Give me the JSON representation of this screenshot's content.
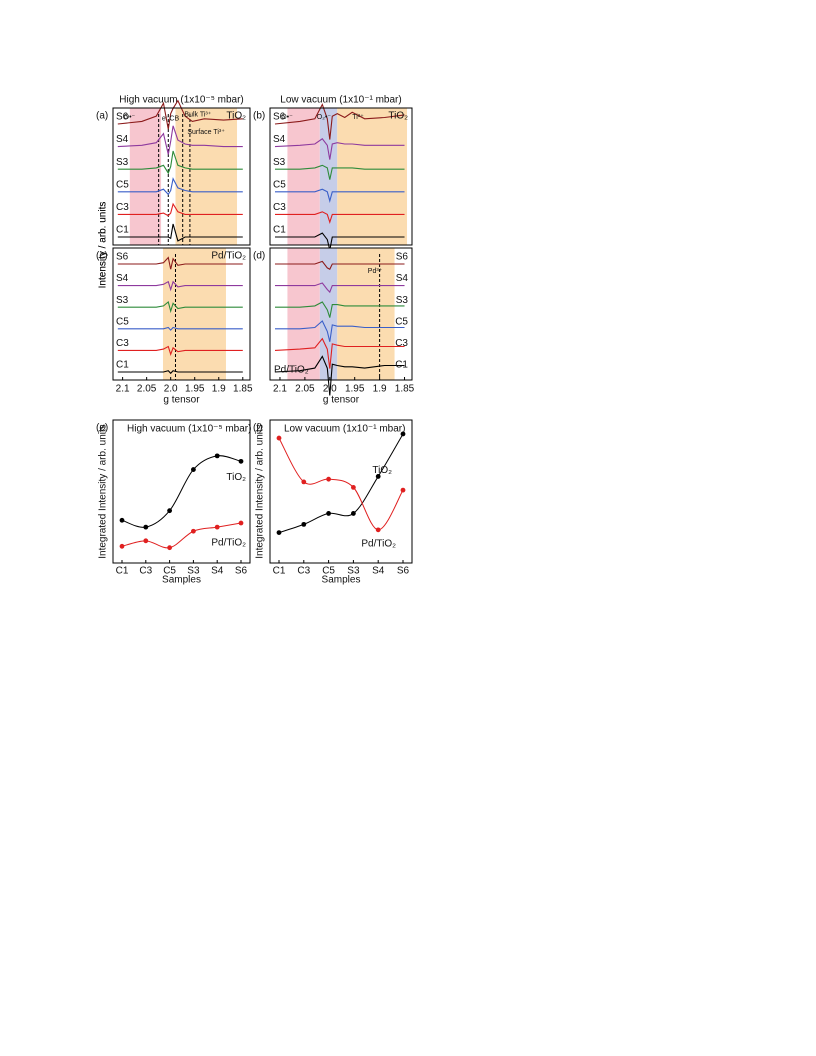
{
  "chart_data": [
    {
      "type": "spectra",
      "panel_label": "(a)",
      "title": "High vacuum (1x10⁻⁵ mbar)",
      "sample_label": "TiO₂",
      "ylabel": "Intensity / arb. units",
      "annotations": [
        "O•⁻",
        "e⁻CB",
        "Bulk Ti³⁺",
        "Surface Ti³⁺"
      ],
      "xlim": [
        2.12,
        1.835
      ],
      "x": [
        2.11,
        2.06,
        2.03,
        2.015,
        2.005,
        2.0,
        1.995,
        1.985,
        1.97,
        1.955,
        1.93,
        1.89,
        1.85
      ],
      "regions": [
        {
          "from": 2.085,
          "to": 2.02,
          "color": "#f7c6cf"
        },
        {
          "from": 1.99,
          "to": 1.862,
          "color": "#fbdcb0"
        }
      ],
      "reference_lines": [
        2.025,
        2.005,
        1.975,
        1.96
      ],
      "series": [
        {
          "name": "S6",
          "color": "#8b1a1a",
          "values": [
            0,
            0.2,
            0.6,
            1.6,
            -0.4,
            0.8,
            1.2,
            1.8,
            0.6,
            0.2,
            0.4,
            0.3,
            0.4
          ]
        },
        {
          "name": "S4",
          "color": "#8e3a9e",
          "values": [
            0,
            0.1,
            0.3,
            1.0,
            -0.6,
            0.4,
            1.6,
            0.5,
            0.2,
            0.1,
            0.1,
            0,
            0
          ]
        },
        {
          "name": "S3",
          "color": "#2e8b3a",
          "values": [
            0,
            0,
            0.1,
            0.3,
            -0.3,
            0.2,
            1.4,
            0.3,
            0.1,
            0,
            0,
            0,
            0
          ]
        },
        {
          "name": "C5",
          "color": "#3a5fc8",
          "values": [
            0,
            0,
            0,
            0.2,
            -0.2,
            0.1,
            1.0,
            0.3,
            0.1,
            0,
            0,
            0,
            0
          ]
        },
        {
          "name": "C3",
          "color": "#e02020",
          "values": [
            0,
            0,
            0,
            0.1,
            -0.1,
            0.1,
            0.8,
            0.2,
            0,
            0,
            0,
            0,
            0
          ]
        },
        {
          "name": "C1",
          "color": "#000000",
          "values": [
            0,
            0,
            0,
            0,
            0,
            -0.1,
            1.0,
            -0.3,
            0,
            0,
            0,
            0,
            0
          ]
        }
      ]
    },
    {
      "type": "spectra",
      "panel_label": "(b)",
      "title": "Low vacuum (1x10⁻¹ mbar)",
      "sample_label": "TiO₂",
      "annotations": [
        "O•⁻",
        "O₂•⁻",
        "Ti³⁺"
      ],
      "xlim": [
        2.12,
        1.835
      ],
      "x": [
        2.11,
        2.06,
        2.03,
        2.015,
        2.005,
        2.0,
        1.995,
        1.985,
        1.97,
        1.955,
        1.93,
        1.89,
        1.85
      ],
      "regions": [
        {
          "from": 2.085,
          "to": 2.02,
          "color": "#f7c6cf"
        },
        {
          "from": 2.02,
          "to": 1.985,
          "color": "#c6cde8"
        },
        {
          "from": 1.985,
          "to": 1.845,
          "color": "#fbdcb0"
        }
      ],
      "reference_lines": [],
      "series": [
        {
          "name": "S6",
          "color": "#8b1a1a",
          "values": [
            0,
            0.2,
            0.4,
            1.5,
            0.4,
            -1.2,
            0.6,
            0.8,
            0.5,
            0.9,
            0.4,
            0.5,
            0.7
          ]
        },
        {
          "name": "S4",
          "color": "#8e3a9e",
          "values": [
            0,
            0.1,
            0.2,
            0.6,
            0.1,
            -1.0,
            0.2,
            0.3,
            0.2,
            0.2,
            0.1,
            0.1,
            0.1
          ]
        },
        {
          "name": "S3",
          "color": "#2e8b3a",
          "values": [
            0,
            0,
            0.1,
            0.3,
            0.1,
            -0.8,
            0.1,
            0.1,
            0.1,
            0.1,
            0,
            0,
            0
          ]
        },
        {
          "name": "C5",
          "color": "#3a5fc8",
          "values": [
            0,
            0,
            0,
            0.2,
            0,
            -0.7,
            0,
            0,
            0,
            0,
            0,
            0,
            0
          ]
        },
        {
          "name": "C3",
          "color": "#e02020",
          "values": [
            0,
            0,
            0,
            0.2,
            0,
            -0.6,
            0,
            0,
            0,
            0,
            0,
            0,
            0
          ]
        },
        {
          "name": "C1",
          "color": "#000000",
          "values": [
            0,
            0,
            0,
            0.3,
            -0.2,
            -1.0,
            0,
            0,
            0,
            0,
            0,
            0,
            0
          ]
        }
      ]
    },
    {
      "type": "spectra",
      "panel_label": "(c)",
      "sample_label": "Pd/TiO₂",
      "ylabel": "Intensity / arb. units",
      "xlabel": "g tensor",
      "annotations": [],
      "xlim": [
        2.12,
        1.835
      ],
      "xticks": [
        2.1,
        2.05,
        {
          "value": 2,
          "label": "2.0"
        },
        1.95,
        1.9,
        1.85
      ],
      "x": [
        2.11,
        2.06,
        2.03,
        2.015,
        2.005,
        2.0,
        1.995,
        1.985,
        1.97,
        1.955,
        1.93,
        1.89,
        1.85
      ],
      "regions": [
        {
          "from": 2.016,
          "to": 1.885,
          "color": "#fbdcb0"
        }
      ],
      "reference_lines": [
        1.99
      ],
      "series": [
        {
          "name": "S6",
          "color": "#8b1a1a",
          "values": [
            0,
            0,
            0,
            0.1,
            0.5,
            -0.4,
            0.4,
            -0.1,
            0,
            0,
            0,
            0,
            0
          ]
        },
        {
          "name": "S4",
          "color": "#8e3a9e",
          "values": [
            0,
            0,
            0,
            0.1,
            0.3,
            -0.3,
            0.3,
            -0.1,
            0,
            0,
            0,
            0,
            0
          ]
        },
        {
          "name": "S3",
          "color": "#2e8b3a",
          "values": [
            0,
            0,
            0,
            0.1,
            0.4,
            -0.3,
            0.3,
            -0.1,
            0,
            0,
            0,
            0,
            0
          ]
        },
        {
          "name": "C5",
          "color": "#3a5fc8",
          "values": [
            0,
            0,
            0,
            0,
            0.1,
            -0.1,
            0.1,
            0,
            0,
            0,
            0,
            0,
            0
          ]
        },
        {
          "name": "C3",
          "color": "#e02020",
          "values": [
            0,
            0,
            0,
            0.1,
            0.3,
            -0.3,
            0.2,
            -0.1,
            0,
            0,
            0,
            0,
            0
          ]
        },
        {
          "name": "C1",
          "color": "#000000",
          "values": [
            0,
            0,
            0,
            0,
            0.1,
            -0.1,
            0.1,
            0,
            0,
            0,
            0,
            0,
            0
          ]
        }
      ]
    },
    {
      "type": "spectra",
      "panel_label": "(d)",
      "sample_label": "Pd/TiO₂",
      "xlabel": "g tensor",
      "annotations": [
        "Pd³⁺"
      ],
      "label_side": "right",
      "xlim": [
        2.12,
        1.835
      ],
      "xticks": [
        2.1,
        2.05,
        {
          "value": 2,
          "label": "2.0"
        },
        1.95,
        1.9,
        1.85
      ],
      "x": [
        2.11,
        2.06,
        2.03,
        2.015,
        2.005,
        2.0,
        1.995,
        1.985,
        1.97,
        1.955,
        1.93,
        1.89,
        1.85
      ],
      "regions": [
        {
          "from": 2.085,
          "to": 2.02,
          "color": "#f7c6cf"
        },
        {
          "from": 2.02,
          "to": 1.985,
          "color": "#c6cde8"
        },
        {
          "from": 1.985,
          "to": 1.87,
          "color": "#fbdcb0"
        }
      ],
      "reference_lines": [
        1.9
      ],
      "series": [
        {
          "name": "S6",
          "color": "#8b1a1a",
          "values": [
            0,
            0,
            0,
            0.2,
            -0.3,
            -0.4,
            0,
            0,
            0,
            0,
            0,
            0,
            0
          ]
        },
        {
          "name": "S4",
          "color": "#8e3a9e",
          "values": [
            0,
            0,
            0,
            0.2,
            -0.3,
            -0.5,
            0,
            0,
            0,
            0,
            0,
            0,
            0
          ]
        },
        {
          "name": "S3",
          "color": "#2e8b3a",
          "values": [
            0,
            0,
            0.1,
            0.4,
            -0.2,
            -0.8,
            0.2,
            0.2,
            0.1,
            0.1,
            0.1,
            0.1,
            0.1
          ]
        },
        {
          "name": "C5",
          "color": "#3a5fc8",
          "values": [
            0,
            0,
            0.1,
            0.6,
            -0.2,
            -1.0,
            0.3,
            0.2,
            0.2,
            0.2,
            0.1,
            0.1,
            0.1
          ]
        },
        {
          "name": "C3",
          "color": "#e02020",
          "values": [
            0,
            0.1,
            0.2,
            0.9,
            0.1,
            -1.4,
            0.5,
            0.4,
            0.3,
            0.3,
            0.3,
            0.3,
            0.3
          ]
        },
        {
          "name": "C1",
          "color": "#000000",
          "values": [
            0,
            0.1,
            0.3,
            1.2,
            0.3,
            -1.8,
            0.6,
            0.5,
            0.4,
            0.4,
            0.3,
            0.5,
            0.5
          ]
        }
      ]
    },
    {
      "type": "line",
      "panel_label": "(e)",
      "title": "High vacuum (1x10⁻⁵ mbar)",
      "ylabel": "Integrated Intensity / arb. units",
      "xlabel": "Samples",
      "categories": [
        "C1",
        "C3",
        "C5",
        "S3",
        "S4",
        "S6"
      ],
      "ylim": [
        0,
        1
      ],
      "series": [
        {
          "name": "TiO₂",
          "color": "#000000",
          "values": [
            0.29,
            0.24,
            0.36,
            0.66,
            0.76,
            0.72
          ]
        },
        {
          "name": "Pd/TiO₂",
          "color": "#e02020",
          "values": [
            0.1,
            0.14,
            0.09,
            0.21,
            0.24,
            0.27
          ]
        }
      ]
    },
    {
      "type": "line",
      "panel_label": "(f)",
      "title": "Low vacuum (1x10⁻¹ mbar)",
      "ylabel": "Integrated Intensity / arb. units",
      "xlabel": "Samples",
      "categories": [
        "C1",
        "C3",
        "C5",
        "S3",
        "S4",
        "S6"
      ],
      "ylim": [
        0,
        1
      ],
      "series": [
        {
          "name": "TiO₂",
          "color": "#000000",
          "values": [
            0.2,
            0.26,
            0.34,
            0.34,
            0.61,
            0.92
          ]
        },
        {
          "name": "Pd/TiO₂",
          "color": "#e02020",
          "values": [
            0.89,
            0.57,
            0.59,
            0.53,
            0.22,
            0.51
          ]
        }
      ]
    }
  ]
}
